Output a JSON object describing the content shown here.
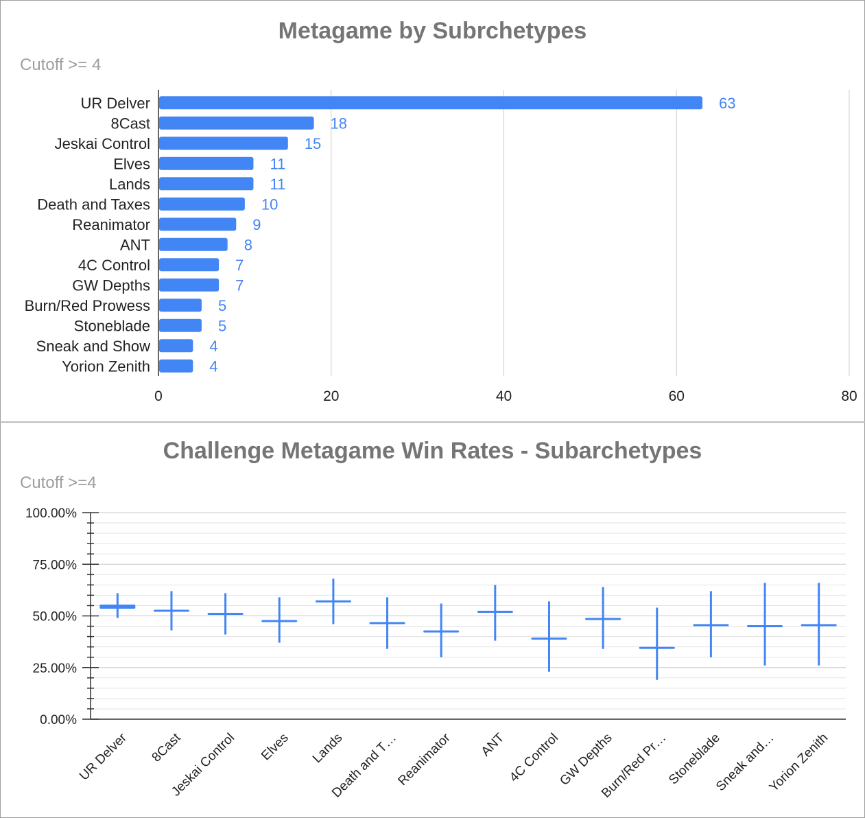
{
  "chart_data": [
    {
      "type": "bar",
      "orientation": "horizontal",
      "title": "Metagame by Subrchetypes",
      "subtitle": "Cutoff >= 4",
      "categories": [
        "UR Delver",
        "8Cast",
        "Jeskai Control",
        "Elves",
        "Lands",
        "Death and Taxes",
        "Reanimator",
        "ANT",
        "4C Control",
        "GW Depths",
        "Burn/Red Prowess",
        "Stoneblade",
        "Sneak and Show",
        "Yorion Zenith"
      ],
      "values": [
        63,
        18,
        15,
        11,
        11,
        10,
        9,
        8,
        7,
        7,
        5,
        5,
        4,
        4
      ],
      "xlim": [
        0,
        80
      ],
      "xticks": [
        "0",
        "20",
        "40",
        "60",
        "80"
      ],
      "grid": true,
      "color": "#4285f4",
      "label_color": "#4285f4"
    },
    {
      "type": "candlestick",
      "title": "Challenge Metagame Win Rates - Subarchetypes",
      "subtitle": "Cutoff >=4",
      "categories": [
        "UR Delver",
        "8Cast",
        "Jeskai Control",
        "Elves",
        "Lands",
        "Death and T…",
        "Reanimator",
        "ANT",
        "4C Control",
        "GW Depths",
        "Burn/Red Pr…",
        "Stoneblade",
        "Sneak and…",
        "Yorion Zenith"
      ],
      "low": [
        49,
        43,
        41,
        37,
        46,
        34,
        30,
        38,
        23,
        34,
        19,
        30,
        26,
        26
      ],
      "open": [
        53.5,
        52,
        50.5,
        47.5,
        56.5,
        46.5,
        42.5,
        51.5,
        38.5,
        48.5,
        34.5,
        45.5,
        45,
        45
      ],
      "close": [
        55.5,
        52.5,
        51.5,
        47.5,
        57.5,
        46.5,
        42.5,
        52,
        39.5,
        48.5,
        34.5,
        45.5,
        45,
        45.5
      ],
      "high": [
        61,
        62,
        61,
        59,
        68,
        59,
        56,
        65,
        57,
        64,
        54,
        62,
        66,
        66
      ],
      "ylim": [
        0,
        100
      ],
      "yticks": [
        "0.00%",
        "25.00%",
        "50.00%",
        "75.00%",
        "100.00%"
      ],
      "grid": true,
      "color": "#4285f4"
    }
  ]
}
